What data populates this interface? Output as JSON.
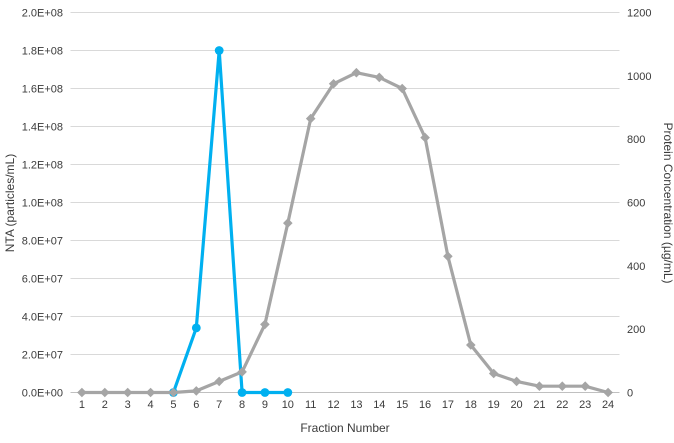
{
  "chart_data": {
    "type": "line",
    "title": "",
    "xlabel": "Fraction Number",
    "ylabel_left": "NTA (particles/mL)",
    "ylabel_right": "Protein Concentration (µg/mL)",
    "x_categories": [
      "1",
      "2",
      "3",
      "4",
      "5",
      "6",
      "7",
      "8",
      "9",
      "10",
      "11",
      "12",
      "13",
      "14",
      "15",
      "16",
      "17",
      "18",
      "19",
      "20",
      "21",
      "22",
      "23",
      "24"
    ],
    "left_axis": {
      "min": 0,
      "max": 200000000,
      "tick_labels": [
        "0.0E+00",
        "2.0E+07",
        "4.0E+07",
        "6.0E+07",
        "8.0E+07",
        "1.0E+08",
        "1.2E+08",
        "1.4E+08",
        "1.6E+08",
        "1.8E+08",
        "2.0E+08"
      ]
    },
    "right_axis": {
      "min": 0,
      "max": 1200,
      "tick_labels": [
        "0",
        "200",
        "400",
        "600",
        "800",
        "1000",
        "1200"
      ]
    },
    "grid": true,
    "legend": "none",
    "series": [
      {
        "name": "NTA (particles/mL)",
        "axis": "left",
        "color": "#00b0f0",
        "marker": "circle",
        "x": [
          5,
          6,
          7,
          8,
          9,
          10
        ],
        "values": [
          0,
          34000000,
          180000000,
          0,
          0,
          0
        ]
      },
      {
        "name": "Protein Concentration (µg/mL)",
        "axis": "right",
        "color": "#a5a5a5",
        "marker": "diamond",
        "x": [
          1,
          2,
          3,
          4,
          5,
          6,
          7,
          8,
          9,
          10,
          11,
          12,
          13,
          14,
          15,
          16,
          17,
          18,
          19,
          20,
          21,
          22,
          23,
          24
        ],
        "values": [
          0,
          0,
          0,
          0,
          0,
          5,
          35,
          65,
          215,
          535,
          865,
          975,
          1010,
          995,
          960,
          805,
          430,
          150,
          60,
          35,
          20,
          20,
          20,
          0
        ]
      }
    ]
  },
  "colors": {
    "background": "#ffffff",
    "grid": "#d9d9d9",
    "axis_line": "#c0c0c0",
    "text": "#3b3b3b",
    "nta_series": "#00b0f0",
    "protein_series": "#a5a5a5"
  }
}
